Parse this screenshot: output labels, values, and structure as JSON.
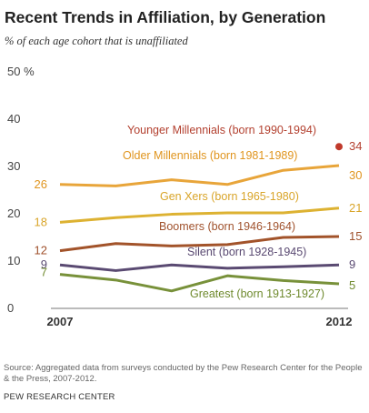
{
  "title": "Recent Trends in Affiliation, by Generation",
  "subtitle": "% of each age cohort that is unaffiliated",
  "chart_data": {
    "type": "line",
    "title": "Recent Trends in Affiliation, by Generation",
    "subtitle": "% of each age cohort that is unaffiliated",
    "x": [
      2007,
      2008,
      2009,
      2010,
      2011,
      2012
    ],
    "x_tick_labels": [
      "2007",
      "2012"
    ],
    "ylim": [
      0,
      50
    ],
    "y_ticks": [
      0,
      10,
      20,
      30,
      40,
      50
    ],
    "y_tick_labels": [
      "0",
      "10",
      "20",
      "30",
      "40",
      "50 %"
    ],
    "grid": false,
    "series": [
      {
        "name": "Younger Millennials (born 1990-1994)",
        "color": "#c0392b",
        "marker_only": true,
        "values": [
          null,
          null,
          null,
          null,
          null,
          34
        ],
        "start_label": "",
        "end_label": "34"
      },
      {
        "name": "Older Millennials (born 1981-1989)",
        "color": "#e8a53a",
        "values": [
          26,
          25.7,
          27,
          26,
          29,
          30
        ],
        "start_label": "26",
        "end_label": "30"
      },
      {
        "name": "Gen Xers (born 1965-1980)",
        "color": "#ddb232",
        "values": [
          18,
          19,
          19.7,
          20,
          20,
          21
        ],
        "start_label": "18",
        "end_label": "21"
      },
      {
        "name": "Boomers (born 1946-1964)",
        "color": "#a2532a",
        "values": [
          12,
          13.5,
          13,
          13.3,
          14.8,
          15
        ],
        "start_label": "12",
        "end_label": "15"
      },
      {
        "name": "Silent (born 1928-1945)",
        "color": "#5a4a72",
        "values": [
          9,
          7.8,
          9,
          8.3,
          8.6,
          9
        ],
        "start_label": "9",
        "end_label": "9"
      },
      {
        "name": "Greatest (born 1913-1927)",
        "color": "#78913a",
        "values": [
          7,
          5.8,
          3.5,
          6.7,
          5.7,
          5
        ],
        "start_label": "7",
        "end_label": "5"
      }
    ]
  },
  "source": "Source: Aggregated data from surveys conducted by the Pew Research Center for the People & the Press, 2007-2012.",
  "organization": "PEW RESEARCH CENTER"
}
